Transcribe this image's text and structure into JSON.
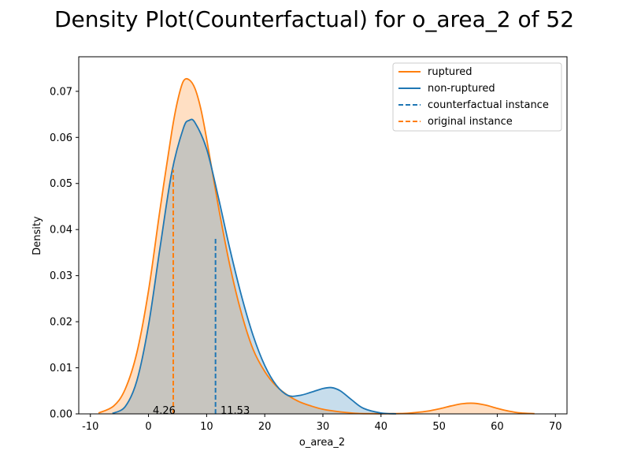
{
  "chart_data": {
    "type": "area",
    "title": "Density Plot(Counterfactual) for o_area_2 of 52",
    "xlabel": "o_area_2",
    "ylabel": "Density",
    "xlim": [
      -12,
      72
    ],
    "ylim": [
      0,
      0.0775
    ],
    "xticks": [
      -10,
      0,
      10,
      20,
      30,
      40,
      50,
      60,
      70
    ],
    "yticks": [
      0.0,
      0.01,
      0.02,
      0.03,
      0.04,
      0.05,
      0.06,
      0.07
    ],
    "ytick_labels": [
      "0.00",
      "0.01",
      "0.02",
      "0.03",
      "0.04",
      "0.05",
      "0.06",
      "0.07"
    ],
    "grid": false,
    "legend_position": "top-right",
    "series": [
      {
        "name": "ruptured",
        "color": "#ff7f0e",
        "x": [
          -8.6,
          -6,
          -4,
          -2,
          0,
          2,
          4,
          5,
          6,
          7,
          8,
          9,
          10,
          12,
          14,
          16,
          18,
          20,
          22,
          24,
          26,
          28,
          30,
          32,
          34,
          36,
          38,
          40,
          42,
          44,
          46,
          48,
          50,
          52,
          54,
          56,
          58,
          60,
          62,
          64,
          66.4
        ],
        "y": [
          0.0002,
          0.0017,
          0.0054,
          0.0133,
          0.0267,
          0.0445,
          0.0612,
          0.0679,
          0.0722,
          0.0725,
          0.0706,
          0.0662,
          0.0597,
          0.0452,
          0.0322,
          0.0218,
          0.014,
          0.0092,
          0.006,
          0.004,
          0.0026,
          0.0017,
          0.001,
          0.0006,
          0.0003,
          0.0001,
          5e-05,
          3e-05,
          5e-05,
          0.0001,
          0.0003,
          0.0006,
          0.0011,
          0.0017,
          0.0022,
          0.0023,
          0.0019,
          0.0012,
          0.0006,
          0.0002,
          5e-05
        ]
      },
      {
        "name": "non-ruptured",
        "color": "#1f77b4",
        "x": [
          -6.2,
          -4,
          -2,
          0,
          2,
          4,
          6,
          7,
          8,
          10,
          12,
          14,
          16,
          18,
          20,
          22,
          24,
          26,
          28,
          30,
          31.5,
          33,
          35,
          37,
          40,
          42.6
        ],
        "y": [
          0.0001,
          0.0016,
          0.0072,
          0.0192,
          0.0362,
          0.0524,
          0.062,
          0.0637,
          0.0632,
          0.0575,
          0.0471,
          0.0358,
          0.0256,
          0.017,
          0.0105,
          0.0062,
          0.004,
          0.004,
          0.0047,
          0.0055,
          0.0057,
          0.005,
          0.003,
          0.0012,
          0.0002,
          2e-05
        ]
      }
    ],
    "vlines": [
      {
        "name": "counterfactual instance",
        "color": "#1f77b4",
        "x": 11.53,
        "y_top": 0.038
      },
      {
        "name": "original instance",
        "color": "#ff7f0e",
        "x": 4.26,
        "y_top": 0.053
      }
    ],
    "annotations": [
      "4.26",
      "11.53"
    ],
    "legend": [
      "ruptured",
      "non-ruptured",
      "counterfactual instance",
      "original instance"
    ]
  }
}
